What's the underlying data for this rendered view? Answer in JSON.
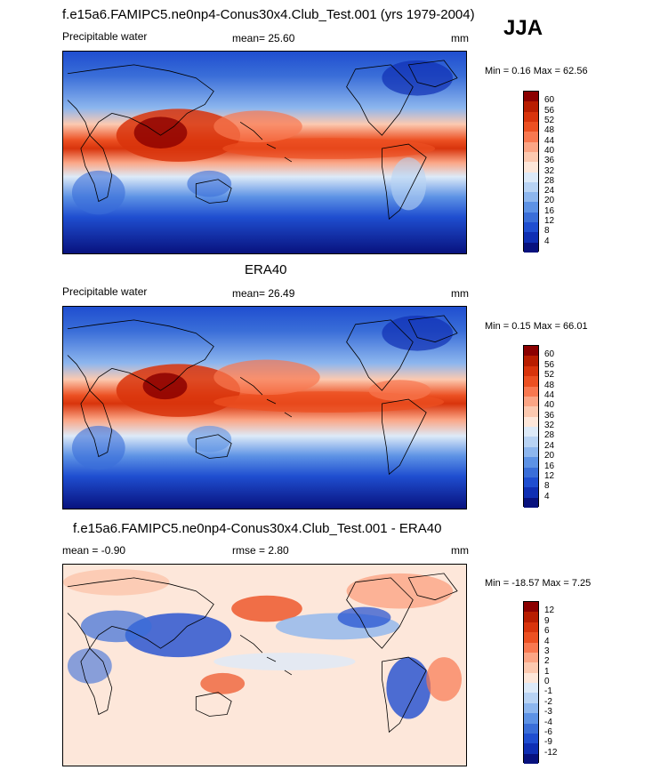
{
  "header": {
    "title": "f.e15a6.FAMIPC5.ne0np4-Conus30x4.Club_Test.001 (yrs 1979-2004)",
    "season": "JJA"
  },
  "panels": [
    {
      "title": "",
      "variable": "Precipitable water",
      "stat": "mean=  25.60",
      "units": "mm",
      "minmax": "Min =   0.16 Max =  62.56",
      "colorbar": {
        "ticks": [
          "60",
          "56",
          "52",
          "48",
          "44",
          "40",
          "36",
          "32",
          "28",
          "24",
          "20",
          "16",
          "12",
          "8",
          "4"
        ],
        "colors": [
          "#8b0000",
          "#b81d00",
          "#d8340c",
          "#ec5022",
          "#f87850",
          "#fba585",
          "#fcc9b0",
          "#fde7da",
          "#ddeaf8",
          "#b8d3f4",
          "#8db6ee",
          "#5d92e5",
          "#3a6ed8",
          "#1f4ed0",
          "#0f2fb3",
          "#08127e"
        ]
      }
    },
    {
      "title": "ERA40",
      "variable": "Precipitable water",
      "stat": "mean=  26.49",
      "units": "mm",
      "minmax": "Min =   0.15 Max =  66.01",
      "colorbar": {
        "ticks": [
          "60",
          "56",
          "52",
          "48",
          "44",
          "40",
          "36",
          "32",
          "28",
          "24",
          "20",
          "16",
          "12",
          "8",
          "4"
        ],
        "colors": [
          "#8b0000",
          "#b81d00",
          "#d8340c",
          "#ec5022",
          "#f87850",
          "#fba585",
          "#fcc9b0",
          "#fde7da",
          "#ddeaf8",
          "#b8d3f4",
          "#8db6ee",
          "#5d92e5",
          "#3a6ed8",
          "#1f4ed0",
          "#0f2fb3",
          "#08127e"
        ]
      }
    },
    {
      "title": "f.e15a6.FAMIPC5.ne0np4-Conus30x4.Club_Test.001 - ERA40",
      "variable": "mean =  -0.90",
      "stat": "rmse =   2.80",
      "units": "mm",
      "minmax": "Min = -18.57 Max =   7.25",
      "colorbar": {
        "ticks": [
          "12",
          "9",
          "6",
          "4",
          "3",
          "2",
          "1",
          "0",
          "-1",
          "-2",
          "-3",
          "-4",
          "-6",
          "-9",
          "-12"
        ],
        "colors": [
          "#8b0000",
          "#b81d00",
          "#d8340c",
          "#ec5022",
          "#f87850",
          "#fba585",
          "#fcc9b0",
          "#fde7da",
          "#ddeaf8",
          "#b8d3f4",
          "#8db6ee",
          "#5d92e5",
          "#3a6ed8",
          "#1f4ed0",
          "#0f2fb3",
          "#08127e"
        ]
      }
    }
  ]
}
